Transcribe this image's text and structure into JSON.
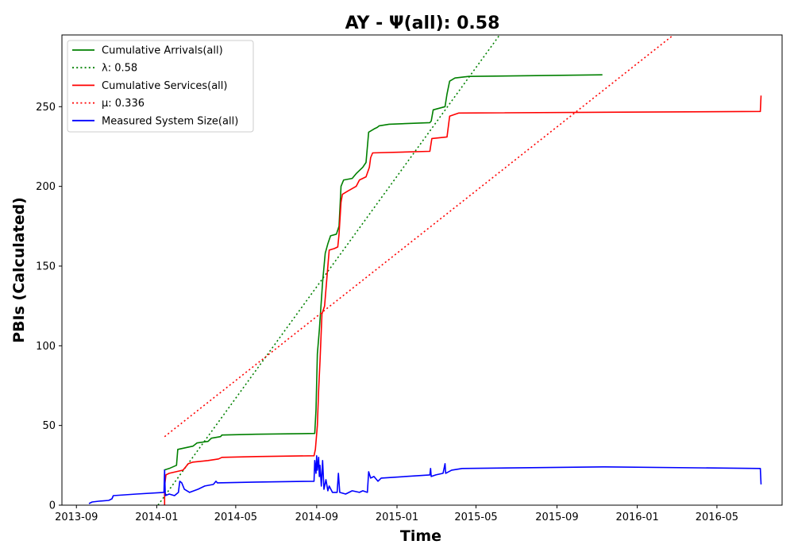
{
  "chart_data": {
    "type": "line",
    "title": "AY -  Ψ(all): 0.58",
    "xlabel": "Time",
    "ylabel": "PBIs (Calculated)",
    "x_axis": {
      "type": "date",
      "range": [
        "2013-08-10",
        "2016-08-08"
      ]
    },
    "ylim": [
      0,
      295
    ],
    "x_ticks": [
      "2013-09",
      "2014-01",
      "2014-05",
      "2014-09",
      "2015-01",
      "2015-05",
      "2015-09",
      "2016-01",
      "2016-05"
    ],
    "y_ticks": [
      0,
      50,
      100,
      150,
      200,
      250
    ],
    "grid": false,
    "legend_position": "top-left",
    "series": [
      {
        "name": "Cumulative Arrivals(all)",
        "color": "#008000",
        "style": "solid",
        "points": [
          [
            "2014-01-12",
            22
          ],
          [
            "2014-01-20",
            23
          ],
          [
            "2014-01-31",
            25
          ],
          [
            "2014-02-02",
            35
          ],
          [
            "2014-02-25",
            37
          ],
          [
            "2014-03-03",
            39
          ],
          [
            "2014-03-20",
            40
          ],
          [
            "2014-03-25",
            42
          ],
          [
            "2014-04-08",
            43
          ],
          [
            "2014-04-10",
            44
          ],
          [
            "2014-06-01",
            44.5
          ],
          [
            "2014-08-29",
            45
          ],
          [
            "2014-08-31",
            60
          ],
          [
            "2014-09-02",
            95
          ],
          [
            "2014-09-05",
            110
          ],
          [
            "2014-09-10",
            140
          ],
          [
            "2014-09-14",
            158
          ],
          [
            "2014-09-18",
            164
          ],
          [
            "2014-09-22",
            169
          ],
          [
            "2014-10-01",
            170
          ],
          [
            "2014-10-05",
            175
          ],
          [
            "2014-10-08",
            200
          ],
          [
            "2014-10-12",
            204
          ],
          [
            "2014-10-25",
            205
          ],
          [
            "2014-10-31",
            208
          ],
          [
            "2014-11-10",
            212
          ],
          [
            "2014-11-15",
            215
          ],
          [
            "2014-11-19",
            234
          ],
          [
            "2014-11-27",
            236
          ],
          [
            "2014-12-02",
            237
          ],
          [
            "2014-12-05",
            238
          ],
          [
            "2014-12-20",
            239
          ],
          [
            "2015-02-20",
            240
          ],
          [
            "2015-02-22",
            241
          ],
          [
            "2015-02-25",
            248
          ],
          [
            "2015-03-15",
            250
          ],
          [
            "2015-03-18",
            258
          ],
          [
            "2015-03-22",
            266
          ],
          [
            "2015-03-30",
            268
          ],
          [
            "2015-04-20",
            269
          ],
          [
            "2015-11-09",
            270
          ]
        ]
      },
      {
        "name": "λ: 0.58",
        "color": "#008000",
        "style": "dotted",
        "points": [
          [
            "2014-01-03",
            0
          ],
          [
            "2015-06-06",
            295
          ]
        ]
      },
      {
        "name": "Cumulative Services(all)",
        "color": "#ff0000",
        "style": "solid",
        "points": [
          [
            "2014-01-13",
            0
          ],
          [
            "2014-01-13",
            12
          ],
          [
            "2014-01-15",
            19
          ],
          [
            "2014-01-20",
            20
          ],
          [
            "2014-02-10",
            22
          ],
          [
            "2014-02-18",
            26
          ],
          [
            "2014-02-25",
            27
          ],
          [
            "2014-03-20",
            28
          ],
          [
            "2014-04-05",
            29
          ],
          [
            "2014-04-10",
            30
          ],
          [
            "2014-06-01",
            30.5
          ],
          [
            "2014-08-28",
            31
          ],
          [
            "2014-08-30",
            35
          ],
          [
            "2014-09-02",
            50
          ],
          [
            "2014-09-04",
            72
          ],
          [
            "2014-09-06",
            90
          ],
          [
            "2014-09-09",
            120
          ],
          [
            "2014-09-13",
            125
          ],
          [
            "2014-09-17",
            145
          ],
          [
            "2014-09-20",
            160
          ],
          [
            "2014-09-28",
            161
          ],
          [
            "2014-10-03",
            162
          ],
          [
            "2014-10-05",
            170
          ],
          [
            "2014-10-08",
            190
          ],
          [
            "2014-10-10",
            195
          ],
          [
            "2014-10-18",
            197
          ],
          [
            "2014-10-31",
            200
          ],
          [
            "2014-11-05",
            204
          ],
          [
            "2014-11-15",
            206
          ],
          [
            "2014-11-20",
            212
          ],
          [
            "2014-11-22",
            218
          ],
          [
            "2014-11-25",
            221
          ],
          [
            "2015-02-20",
            222
          ],
          [
            "2015-02-21",
            225
          ],
          [
            "2015-02-23",
            230
          ],
          [
            "2015-03-18",
            231
          ],
          [
            "2015-03-22",
            244
          ],
          [
            "2015-04-05",
            246
          ],
          [
            "2016-07-06",
            247
          ],
          [
            "2016-07-07",
            257
          ]
        ]
      },
      {
        "name": "μ: 0.336",
        "color": "#ff0000",
        "style": "dotted",
        "points": [
          [
            "2014-01-13",
            43
          ],
          [
            "2016-02-25",
            295
          ]
        ]
      },
      {
        "name": "Measured System Size(all)",
        "color": "#0000ff",
        "style": "solid",
        "points": [
          [
            "2013-09-20",
            1
          ],
          [
            "2013-09-25",
            2
          ],
          [
            "2013-10-05",
            2.5
          ],
          [
            "2013-10-20",
            3
          ],
          [
            "2013-10-25",
            4
          ],
          [
            "2013-10-27",
            6
          ],
          [
            "2013-12-01",
            7
          ],
          [
            "2014-01-12",
            8
          ],
          [
            "2014-01-13",
            22
          ],
          [
            "2014-01-14",
            6
          ],
          [
            "2014-01-20",
            7
          ],
          [
            "2014-01-28",
            6
          ],
          [
            "2014-02-03",
            8
          ],
          [
            "2014-02-05",
            15
          ],
          [
            "2014-02-08",
            14
          ],
          [
            "2014-02-12",
            10
          ],
          [
            "2014-02-20",
            8
          ],
          [
            "2014-03-05",
            10
          ],
          [
            "2014-03-15",
            12
          ],
          [
            "2014-03-28",
            13
          ],
          [
            "2014-04-01",
            15
          ],
          [
            "2014-04-03",
            14
          ],
          [
            "2014-06-01",
            14.5
          ],
          [
            "2014-08-28",
            15
          ],
          [
            "2014-08-29",
            28
          ],
          [
            "2014-08-31",
            20
          ],
          [
            "2014-09-01",
            31
          ],
          [
            "2014-09-02",
            22
          ],
          [
            "2014-09-04",
            30
          ],
          [
            "2014-09-05",
            18
          ],
          [
            "2014-09-06",
            25
          ],
          [
            "2014-09-08",
            12
          ],
          [
            "2014-09-10",
            28
          ],
          [
            "2014-09-12",
            10
          ],
          [
            "2014-09-15",
            16
          ],
          [
            "2014-09-18",
            9
          ],
          [
            "2014-09-20",
            12
          ],
          [
            "2014-09-25",
            8
          ],
          [
            "2014-10-02",
            8
          ],
          [
            "2014-10-04",
            20
          ],
          [
            "2014-10-06",
            8
          ],
          [
            "2014-10-15",
            7
          ],
          [
            "2014-10-25",
            9
          ],
          [
            "2014-11-05",
            8
          ],
          [
            "2014-11-10",
            9
          ],
          [
            "2014-11-17",
            8
          ],
          [
            "2014-11-19",
            21
          ],
          [
            "2014-11-22",
            17
          ],
          [
            "2014-11-27",
            18
          ],
          [
            "2014-12-03",
            15
          ],
          [
            "2014-12-08",
            17
          ],
          [
            "2015-02-20",
            19
          ],
          [
            "2015-02-21",
            23
          ],
          [
            "2015-02-22",
            18
          ],
          [
            "2015-03-01",
            19
          ],
          [
            "2015-03-12",
            20
          ],
          [
            "2015-03-15",
            26
          ],
          [
            "2015-03-16",
            20
          ],
          [
            "2015-03-25",
            22
          ],
          [
            "2015-04-10",
            23
          ],
          [
            "2015-11-10",
            24
          ],
          [
            "2016-07-06",
            23
          ],
          [
            "2016-07-07",
            13
          ]
        ]
      }
    ]
  }
}
